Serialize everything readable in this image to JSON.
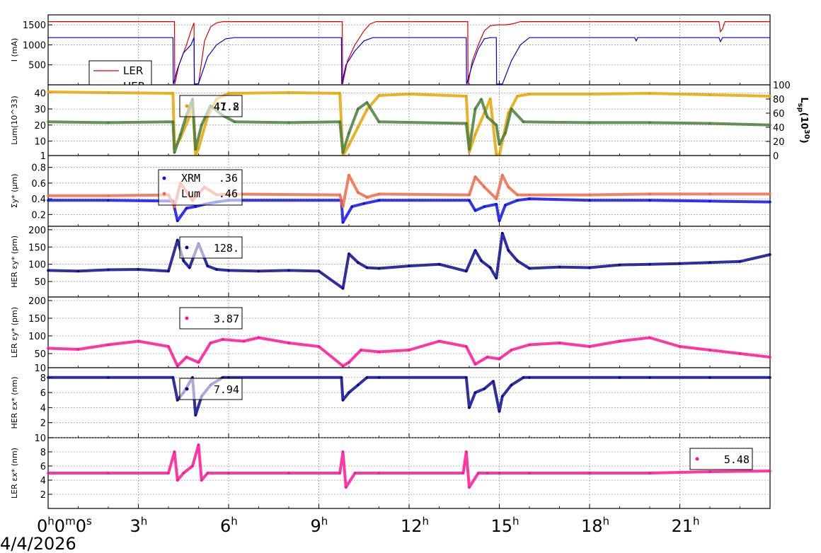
{
  "xaxis": {
    "ticks": [
      {
        "h": 0,
        "base": "0",
        "sups": [
          "h",
          "m",
          "s"
        ],
        "mids": [
          "0",
          "0"
        ]
      },
      {
        "h": 3,
        "base": "3",
        "sup": "h"
      },
      {
        "h": 6,
        "base": "6",
        "sup": "h"
      },
      {
        "h": 9,
        "base": "9",
        "sup": "h"
      },
      {
        "h": 12,
        "base": "12",
        "sup": "h"
      },
      {
        "h": 15,
        "base": "15",
        "sup": "h"
      },
      {
        "h": 18,
        "base": "18",
        "sup": "h"
      },
      {
        "h": 21,
        "base": "21",
        "sup": "h"
      }
    ],
    "range": [
      0,
      24
    ],
    "date_label": "4/4/2026"
  },
  "chart_data": [
    {
      "type": "line",
      "ylabel": "I (mA)",
      "ylim": [
        0,
        1750
      ],
      "yticks": [
        500,
        1000,
        1500
      ],
      "grid": true,
      "legend": {
        "placement": "bottom-left",
        "entries": [
          "LER",
          "HER"
        ]
      },
      "series": [
        {
          "name": "LER",
          "color": "#dd0000",
          "x": [
            0,
            4.2,
            4.21,
            4.35,
            4.6,
            4.75,
            4.85,
            4.86,
            5.0,
            5.2,
            5.4,
            5.6,
            5.8,
            6.0,
            9.78,
            9.79,
            9.95,
            10.2,
            10.5,
            10.7,
            10.9,
            11.0,
            13.95,
            13.96,
            14.1,
            14.3,
            14.5,
            14.7,
            14.95,
            14.96,
            15.2,
            15.4,
            15.5,
            15.7,
            16.0,
            22.3,
            22.35,
            22.42,
            22.5,
            24
          ],
          "y": [
            1580,
            1580,
            20,
            500,
            1000,
            1350,
            1550,
            20,
            30,
            1100,
            1450,
            1550,
            1580,
            1580,
            1580,
            20,
            600,
            1000,
            1350,
            1520,
            1580,
            1580,
            1580,
            20,
            600,
            1000,
            1350,
            1480,
            1500,
            1500,
            1500,
            1520,
            1540,
            1580,
            1580,
            1580,
            1330,
            1400,
            1580,
            1580
          ]
        },
        {
          "name": "HER",
          "color": "#0000dd",
          "x": [
            0,
            4.15,
            4.16,
            4.3,
            4.5,
            4.75,
            4.85,
            4.86,
            5.0,
            5.3,
            5.6,
            5.9,
            6.2,
            9.75,
            9.76,
            9.9,
            10.2,
            10.5,
            10.8,
            11.0,
            13.9,
            13.91,
            14.1,
            14.3,
            14.5,
            14.7,
            14.9,
            14.91,
            15.1,
            15.4,
            15.7,
            16.0,
            19.5,
            19.55,
            19.6,
            22.3,
            22.35,
            22.42,
            24
          ],
          "y": [
            1180,
            1180,
            20,
            400,
            800,
            1000,
            1180,
            20,
            30,
            700,
            1000,
            1150,
            1180,
            1180,
            20,
            500,
            850,
            1100,
            1180,
            1180,
            1180,
            20,
            500,
            900,
            1150,
            1180,
            1180,
            20,
            20,
            600,
            1000,
            1180,
            1180,
            1100,
            1180,
            1180,
            1080,
            1180,
            1180
          ]
        }
      ]
    },
    {
      "type": "scatter",
      "ylabel": "Lum(10^33)",
      "y2label": "Lsp(10^30)",
      "ylim": [
        1,
        45
      ],
      "yticks": [
        1,
        10,
        20,
        30,
        40
      ],
      "y2lim": [
        0,
        100
      ],
      "y2ticks": [
        0,
        20,
        40,
        60,
        80,
        100
      ],
      "grid": true,
      "legend": {
        "placement": "top-left",
        "value_text": "47.8",
        "overlap_text": "41.2"
      },
      "series": [
        {
          "name": "Lsp",
          "color": "#e6a400",
          "axis": "right",
          "x": [
            0,
            2,
            4.15,
            4.2,
            4.4,
            4.7,
            4.8,
            4.9,
            5.0,
            5.3,
            5.6,
            6.0,
            8,
            9.7,
            9.8,
            10.0,
            10.3,
            10.6,
            11.0,
            12,
            13.9,
            14.0,
            14.2,
            14.5,
            14.7,
            14.9,
            15.0,
            15.3,
            15.6,
            16,
            18,
            20,
            22,
            24
          ],
          "y": [
            90,
            89,
            88,
            10,
            25,
            55,
            80,
            0,
            10,
            55,
            80,
            88,
            89,
            88,
            0,
            15,
            40,
            65,
            85,
            87,
            84,
            5,
            30,
            60,
            80,
            2,
            0,
            60,
            84,
            87,
            87,
            88,
            86,
            84
          ]
        },
        {
          "name": "Lum",
          "color": "#4a7c3a",
          "axis": "left",
          "x": [
            0,
            2,
            4.15,
            4.2,
            4.4,
            4.6,
            4.8,
            4.9,
            5.1,
            5.4,
            5.8,
            6.2,
            8,
            9.7,
            9.8,
            10.0,
            10.3,
            10.6,
            11,
            13.9,
            14.0,
            14.2,
            14.4,
            14.6,
            14.9,
            15.0,
            15.2,
            15.4,
            15.8,
            18,
            20,
            22,
            24
          ],
          "y": [
            22,
            21.5,
            22,
            3,
            14,
            26,
            36,
            5,
            20,
            32,
            26,
            22,
            21.5,
            22,
            3,
            15,
            30,
            34,
            22,
            21,
            5,
            30,
            36,
            25,
            20,
            8,
            15,
            30,
            22,
            21.5,
            21.5,
            21,
            20
          ]
        }
      ]
    },
    {
      "type": "scatter",
      "ylabel": "Σy* (μm)",
      "ylim": [
        0.05,
        0.95
      ],
      "yticks": [
        0.2,
        0.4,
        0.6,
        0.8
      ],
      "grid": true,
      "legend": {
        "placement": "top-left",
        "entries": [
          {
            "name": "XRM",
            "value": ".36"
          },
          {
            "name": "Lum",
            "value": ".46"
          }
        ]
      },
      "series": [
        {
          "name": "XRM",
          "color": "#1010e8",
          "x": [
            0,
            2,
            4.15,
            4.3,
            4.6,
            4.9,
            5.2,
            5.6,
            6,
            9.75,
            9.8,
            10.1,
            10.5,
            11,
            14,
            14.2,
            14.5,
            14.9,
            15.0,
            15.2,
            15.6,
            16,
            18,
            20,
            22,
            24
          ],
          "y": [
            0.38,
            0.38,
            0.37,
            0.12,
            0.28,
            0.3,
            0.33,
            0.36,
            0.38,
            0.38,
            0.1,
            0.3,
            0.34,
            0.38,
            0.38,
            0.25,
            0.3,
            0.33,
            0.12,
            0.32,
            0.38,
            0.4,
            0.38,
            0.38,
            0.37,
            0.36
          ]
        },
        {
          "name": "Lum",
          "color": "#f06a4a",
          "x": [
            0,
            2,
            4,
            4.2,
            4.4,
            4.8,
            5.2,
            5.6,
            6,
            9.7,
            9.8,
            10.0,
            10.3,
            10.6,
            11,
            14,
            14.2,
            14.5,
            14.9,
            15.1,
            15.3,
            15.6,
            16,
            18,
            20,
            22,
            24
          ],
          "y": [
            0.44,
            0.44,
            0.45,
            0.3,
            0.6,
            0.38,
            0.55,
            0.45,
            0.46,
            0.45,
            0.3,
            0.7,
            0.48,
            0.42,
            0.46,
            0.45,
            0.68,
            0.55,
            0.4,
            0.7,
            0.55,
            0.45,
            0.45,
            0.45,
            0.46,
            0.46,
            0.46
          ]
        }
      ]
    },
    {
      "type": "scatter",
      "ylabel": "HER εy* (pm)",
      "ylim": [
        5,
        210
      ],
      "yticks": [
        50,
        100,
        150,
        200
      ],
      "grid": true,
      "legend": {
        "placement": "top-left",
        "value_text": "128."
      },
      "series": [
        {
          "name": "HER",
          "color": "#0a0a8c",
          "x": [
            0,
            1,
            2,
            3,
            4,
            4.3,
            4.5,
            4.7,
            5.0,
            5.3,
            5.6,
            6,
            7,
            8,
            9,
            9.8,
            10.0,
            10.3,
            10.6,
            11,
            12,
            13,
            13.9,
            14.2,
            14.4,
            14.7,
            14.9,
            15.1,
            15.3,
            15.6,
            16,
            17,
            18,
            19,
            20,
            21,
            22,
            23,
            24
          ],
          "y": [
            82,
            80,
            84,
            85,
            80,
            170,
            110,
            90,
            160,
            95,
            85,
            82,
            80,
            82,
            80,
            30,
            130,
            105,
            90,
            88,
            95,
            100,
            80,
            140,
            110,
            90,
            60,
            190,
            140,
            110,
            88,
            92,
            90,
            98,
            100,
            102,
            105,
            108,
            128
          ]
        }
      ]
    },
    {
      "type": "scatter",
      "ylabel": "LER εy* (pm)",
      "ylim": [
        10,
        210
      ],
      "yticks": [
        10,
        50,
        100,
        150,
        200
      ],
      "grid": true,
      "legend": {
        "placement": "top-left",
        "value_text": "3.87"
      },
      "series": [
        {
          "name": "LER",
          "color": "#ff1493",
          "x": [
            0,
            1,
            2,
            3,
            4,
            4.3,
            4.6,
            5.0,
            5.4,
            5.8,
            6.5,
            7,
            8,
            9,
            9.8,
            10.0,
            10.4,
            11,
            12,
            13,
            13.9,
            14.2,
            14.6,
            15,
            15.4,
            16,
            17,
            18,
            19,
            20,
            21,
            22,
            23,
            24
          ],
          "y": [
            65,
            62,
            75,
            85,
            70,
            15,
            40,
            25,
            80,
            90,
            85,
            95,
            80,
            70,
            15,
            25,
            60,
            55,
            60,
            85,
            70,
            20,
            40,
            35,
            60,
            75,
            80,
            70,
            85,
            95,
            70,
            60,
            50,
            40
          ]
        }
      ]
    },
    {
      "type": "scatter",
      "ylabel": "HER εx* (nm)",
      "ylim": [
        0,
        9.3
      ],
      "yticks": [
        2,
        4,
        6,
        8
      ],
      "grid": true,
      "legend": {
        "placement": "top-left",
        "value_text": "7.94"
      },
      "series": [
        {
          "name": "HER",
          "color": "#0a0a8c",
          "x": [
            0,
            2,
            4.15,
            4.3,
            4.5,
            4.8,
            4.9,
            5.1,
            5.4,
            5.8,
            6,
            9.75,
            9.8,
            10.0,
            10.3,
            10.6,
            11,
            13.9,
            14.0,
            14.2,
            14.5,
            14.8,
            15.0,
            15.1,
            15.4,
            15.8,
            16,
            19,
            20,
            22,
            24
          ],
          "y": [
            8,
            8,
            8,
            5,
            6,
            8,
            3,
            5.5,
            7,
            8,
            8,
            8,
            5,
            6,
            7,
            8,
            8,
            8,
            4,
            6,
            6.5,
            7.5,
            3.5,
            5.5,
            7,
            8,
            8,
            8,
            8,
            8,
            8
          ]
        }
      ]
    },
    {
      "type": "scatter",
      "ylabel": "LER εx* (nm)",
      "ylim": [
        0,
        10
      ],
      "yticks": [
        2,
        4,
        6,
        8,
        10
      ],
      "grid": true,
      "legend": {
        "placement": "top-right",
        "value_text": "5.48"
      },
      "series": [
        {
          "name": "LER",
          "color": "#ff1493",
          "x": [
            0,
            2,
            4,
            4.2,
            4.3,
            4.5,
            4.8,
            5.0,
            5.1,
            5.3,
            6,
            8,
            9.7,
            9.8,
            9.9,
            10.2,
            11,
            13.8,
            13.9,
            14.0,
            14.3,
            14.6,
            15,
            16,
            18,
            20,
            22,
            24
          ],
          "y": [
            5,
            5,
            5,
            8,
            4,
            5,
            6,
            9,
            4,
            5,
            5,
            5,
            5,
            8,
            3,
            5,
            5,
            5,
            8,
            3,
            5,
            5,
            5,
            5,
            5,
            5,
            5.2,
            5.3
          ]
        }
      ]
    }
  ]
}
